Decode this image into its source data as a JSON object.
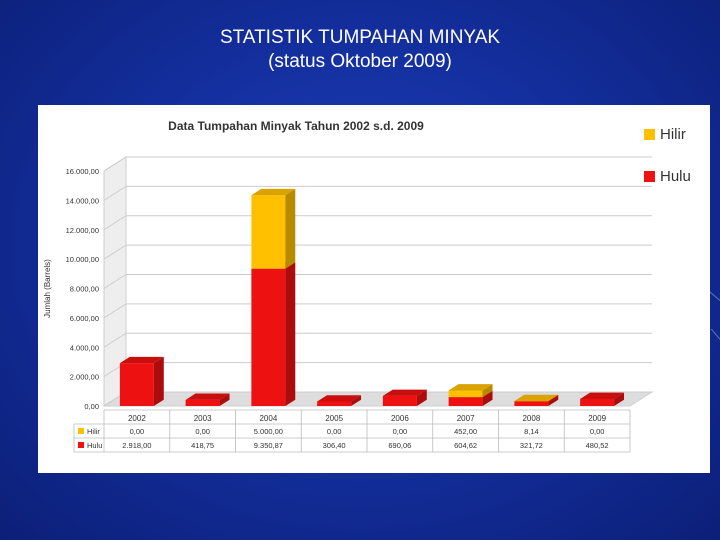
{
  "slide": {
    "title_line1": "STATISTIK TUMPAHAN MINYAK",
    "title_line2": "(status Oktober 2009)"
  },
  "chart_data": {
    "type": "bar",
    "stacked": true,
    "three_d": true,
    "title": "Data Tumpahan Minyak Tahun 2002 s.d. 2009",
    "xlabel": "",
    "ylabel": "Jumlah (Barrels)",
    "ylim": [
      0,
      16000
    ],
    "yticks": [
      0,
      2000,
      4000,
      6000,
      8000,
      10000,
      12000,
      14000,
      16000
    ],
    "ytick_labels": [
      "0,00",
      "2.000,00",
      "4.000,00",
      "6.000,00",
      "8.000,00",
      "10.000,00",
      "12.000,00",
      "14.000,00",
      "16.000,00"
    ],
    "grid": true,
    "legend": "right",
    "categories": [
      "2002",
      "2003",
      "2004",
      "2005",
      "2006",
      "2007",
      "2008",
      "2009"
    ],
    "series": [
      {
        "name": "Hulu",
        "color": "#ee1111",
        "values": [
          2918.0,
          418.75,
          9350.87,
          306.4,
          690.06,
          604.62,
          321.72,
          480.52
        ],
        "labels": [
          "2.918,00",
          "418,75",
          "9.350,87",
          "306,40",
          "690,06",
          "604,62",
          "321,72",
          "480,52"
        ]
      },
      {
        "name": "Hilir",
        "color": "#ffc000",
        "values": [
          0,
          0,
          5000.0,
          0,
          0,
          452.0,
          8.14,
          0
        ],
        "labels": [
          "0,00",
          "0,00",
          "5.000,00",
          "0,00",
          "0,00",
          "452,00",
          "8,14",
          "0,00"
        ]
      }
    ]
  }
}
